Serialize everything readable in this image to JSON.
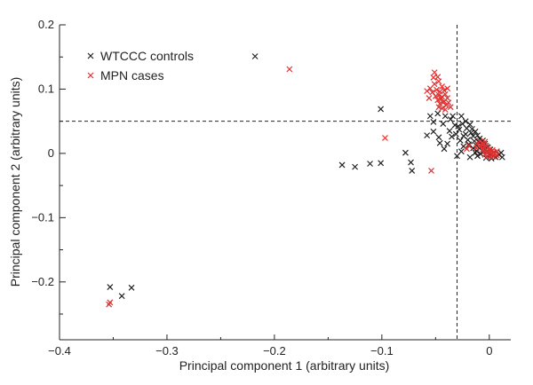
{
  "chart_data": {
    "type": "scatter",
    "xlabel": "Principal component 1 (arbitrary units)",
    "ylabel": "Principal component 2 (arbitrary units)",
    "xlim": [
      -0.4,
      0.02
    ],
    "ylim": [
      -0.29,
      0.2
    ],
    "x_ticks": [
      -0.4,
      -0.3,
      -0.2,
      -0.1,
      0
    ],
    "x_tick_labels": [
      "−0.4",
      "−0.3",
      "−0.2",
      "−0.1",
      "0"
    ],
    "y_ticks": [
      0.2,
      0.1,
      0,
      -0.1,
      -0.2
    ],
    "y_tick_labels": [
      "0.2",
      "0.1",
      "0",
      "−0.1",
      "−0.2"
    ],
    "reference_lines": {
      "vertical_x": -0.03,
      "horizontal_y": 0.05
    },
    "legend_position": "top-left",
    "grid": false,
    "series": [
      {
        "name": "WTCCC controls",
        "color": "#222222",
        "marker": "x",
        "points": [
          [
            -0.353,
            -0.208
          ],
          [
            -0.342,
            -0.222
          ],
          [
            -0.333,
            -0.209
          ],
          [
            -0.218,
            0.151
          ],
          [
            -0.137,
            -0.018
          ],
          [
            -0.125,
            -0.021
          ],
          [
            -0.111,
            -0.016
          ],
          [
            -0.101,
            -0.015
          ],
          [
            -0.101,
            0.069
          ],
          [
            -0.078,
            0.001
          ],
          [
            -0.073,
            -0.014
          ],
          [
            -0.072,
            -0.027
          ],
          [
            -0.058,
            0.028
          ],
          [
            -0.052,
            0.034
          ],
          [
            -0.047,
            0.025
          ],
          [
            -0.046,
            0.016
          ],
          [
            -0.039,
            0.015
          ],
          [
            -0.042,
            0.007
          ],
          [
            -0.043,
            0.046
          ],
          [
            -0.041,
            0.058
          ],
          [
            -0.036,
            0.053
          ],
          [
            -0.032,
            0.044
          ],
          [
            -0.034,
            0.058
          ],
          [
            -0.028,
            0.037
          ],
          [
            -0.026,
            0.058
          ],
          [
            -0.025,
            0.046
          ],
          [
            -0.022,
            0.05
          ],
          [
            -0.021,
            0.039
          ],
          [
            -0.018,
            0.045
          ],
          [
            -0.016,
            0.038
          ],
          [
            -0.022,
            0.03
          ],
          [
            -0.017,
            0.032
          ],
          [
            -0.013,
            0.034
          ],
          [
            -0.015,
            0.027
          ],
          [
            -0.011,
            0.028
          ],
          [
            -0.009,
            0.023
          ],
          [
            -0.014,
            0.019
          ],
          [
            -0.01,
            0.018
          ],
          [
            -0.006,
            0.02
          ],
          [
            -0.012,
            0.012
          ],
          [
            -0.007,
            0.013
          ],
          [
            -0.004,
            0.015
          ],
          [
            -0.009,
            0.008
          ],
          [
            -0.005,
            0.008
          ],
          [
            -0.002,
            0.01
          ],
          [
            -0.006,
            0.003
          ],
          [
            -0.002,
            0.004
          ],
          [
            0.001,
            0.006
          ],
          [
            -0.008,
            -0.001
          ],
          [
            -0.004,
            -0.002
          ],
          [
            0.001,
            -0.002
          ],
          [
            0.004,
            0.001
          ],
          [
            0.007,
            0.003
          ],
          [
            0.009,
            -0.002
          ],
          [
            -0.012,
            0.004
          ],
          [
            -0.015,
            0.008
          ],
          [
            -0.011,
            -0.004
          ],
          [
            -0.003,
            -0.007
          ],
          [
            0.002,
            -0.008
          ],
          [
            0.006,
            -0.006
          ],
          [
            -0.02,
            0.021
          ],
          [
            -0.024,
            0.027
          ],
          [
            -0.019,
            0.014
          ],
          [
            -0.029,
            0.042
          ],
          [
            -0.031,
            0.03
          ],
          [
            -0.037,
            0.035
          ],
          [
            -0.027,
            0.02
          ],
          [
            -0.024,
            0.011
          ],
          [
            -0.026,
            0.003
          ],
          [
            -0.03,
            -0.004
          ],
          [
            -0.035,
            0.026
          ],
          [
            -0.052,
            0.049
          ],
          [
            -0.048,
            0.062
          ],
          [
            -0.055,
            0.058
          ],
          [
            0.011,
            0.001
          ],
          [
            0.012,
            -0.006
          ],
          [
            -0.018,
            -0.006
          ],
          [
            -0.013,
            0.001
          ]
        ]
      },
      {
        "name": "MPN cases",
        "color": "#e03030",
        "marker": "x",
        "points": [
          [
            -0.353,
            -0.232
          ],
          [
            -0.354,
            -0.235
          ],
          [
            -0.186,
            0.131
          ],
          [
            -0.097,
            0.024
          ],
          [
            -0.054,
            -0.027
          ],
          [
            -0.052,
            0.118
          ],
          [
            -0.051,
            0.126
          ],
          [
            -0.048,
            0.119
          ],
          [
            -0.055,
            0.101
          ],
          [
            -0.051,
            0.108
          ],
          [
            -0.047,
            0.112
          ],
          [
            -0.044,
            0.104
          ],
          [
            -0.053,
            0.095
          ],
          [
            -0.049,
            0.099
          ],
          [
            -0.046,
            0.096
          ],
          [
            -0.042,
            0.098
          ],
          [
            -0.05,
            0.089
          ],
          [
            -0.047,
            0.091
          ],
          [
            -0.044,
            0.088
          ],
          [
            -0.041,
            0.092
          ],
          [
            -0.048,
            0.083
          ],
          [
            -0.045,
            0.085
          ],
          [
            -0.042,
            0.081
          ],
          [
            -0.039,
            0.086
          ],
          [
            -0.046,
            0.077
          ],
          [
            -0.043,
            0.079
          ],
          [
            -0.04,
            0.075
          ],
          [
            -0.047,
            0.072
          ],
          [
            -0.044,
            0.07
          ],
          [
            -0.041,
            0.068
          ],
          [
            -0.038,
            0.079
          ],
          [
            -0.036,
            0.072
          ],
          [
            -0.058,
            0.097
          ],
          [
            -0.056,
            0.086
          ],
          [
            -0.039,
            0.101
          ],
          [
            -0.009,
            0.019
          ],
          [
            -0.007,
            0.016
          ],
          [
            -0.005,
            0.014
          ],
          [
            -0.008,
            0.011
          ],
          [
            -0.005,
            0.01
          ],
          [
            -0.003,
            0.012
          ],
          [
            -0.001,
            0.009
          ],
          [
            -0.006,
            0.006
          ],
          [
            -0.003,
            0.006
          ],
          [
            0.0,
            0.006
          ],
          [
            0.003,
            0.005
          ],
          [
            -0.005,
            0.002
          ],
          [
            -0.002,
            0.002
          ],
          [
            0.001,
            0.002
          ],
          [
            0.004,
            0.002
          ],
          [
            -0.004,
            -0.002
          ],
          [
            -0.001,
            -0.002
          ],
          [
            0.002,
            -0.002
          ],
          [
            0.005,
            -0.001
          ],
          [
            -0.002,
            -0.005
          ],
          [
            0.001,
            -0.005
          ],
          [
            0.004,
            -0.005
          ],
          [
            0.007,
            -0.003
          ],
          [
            -0.011,
            0.015
          ],
          [
            -0.012,
            0.008
          ],
          [
            0.007,
            0.003
          ],
          [
            -0.004,
            0.018
          ],
          [
            -0.019,
            0.012
          ],
          [
            -0.021,
            0.007
          ]
        ]
      }
    ]
  }
}
